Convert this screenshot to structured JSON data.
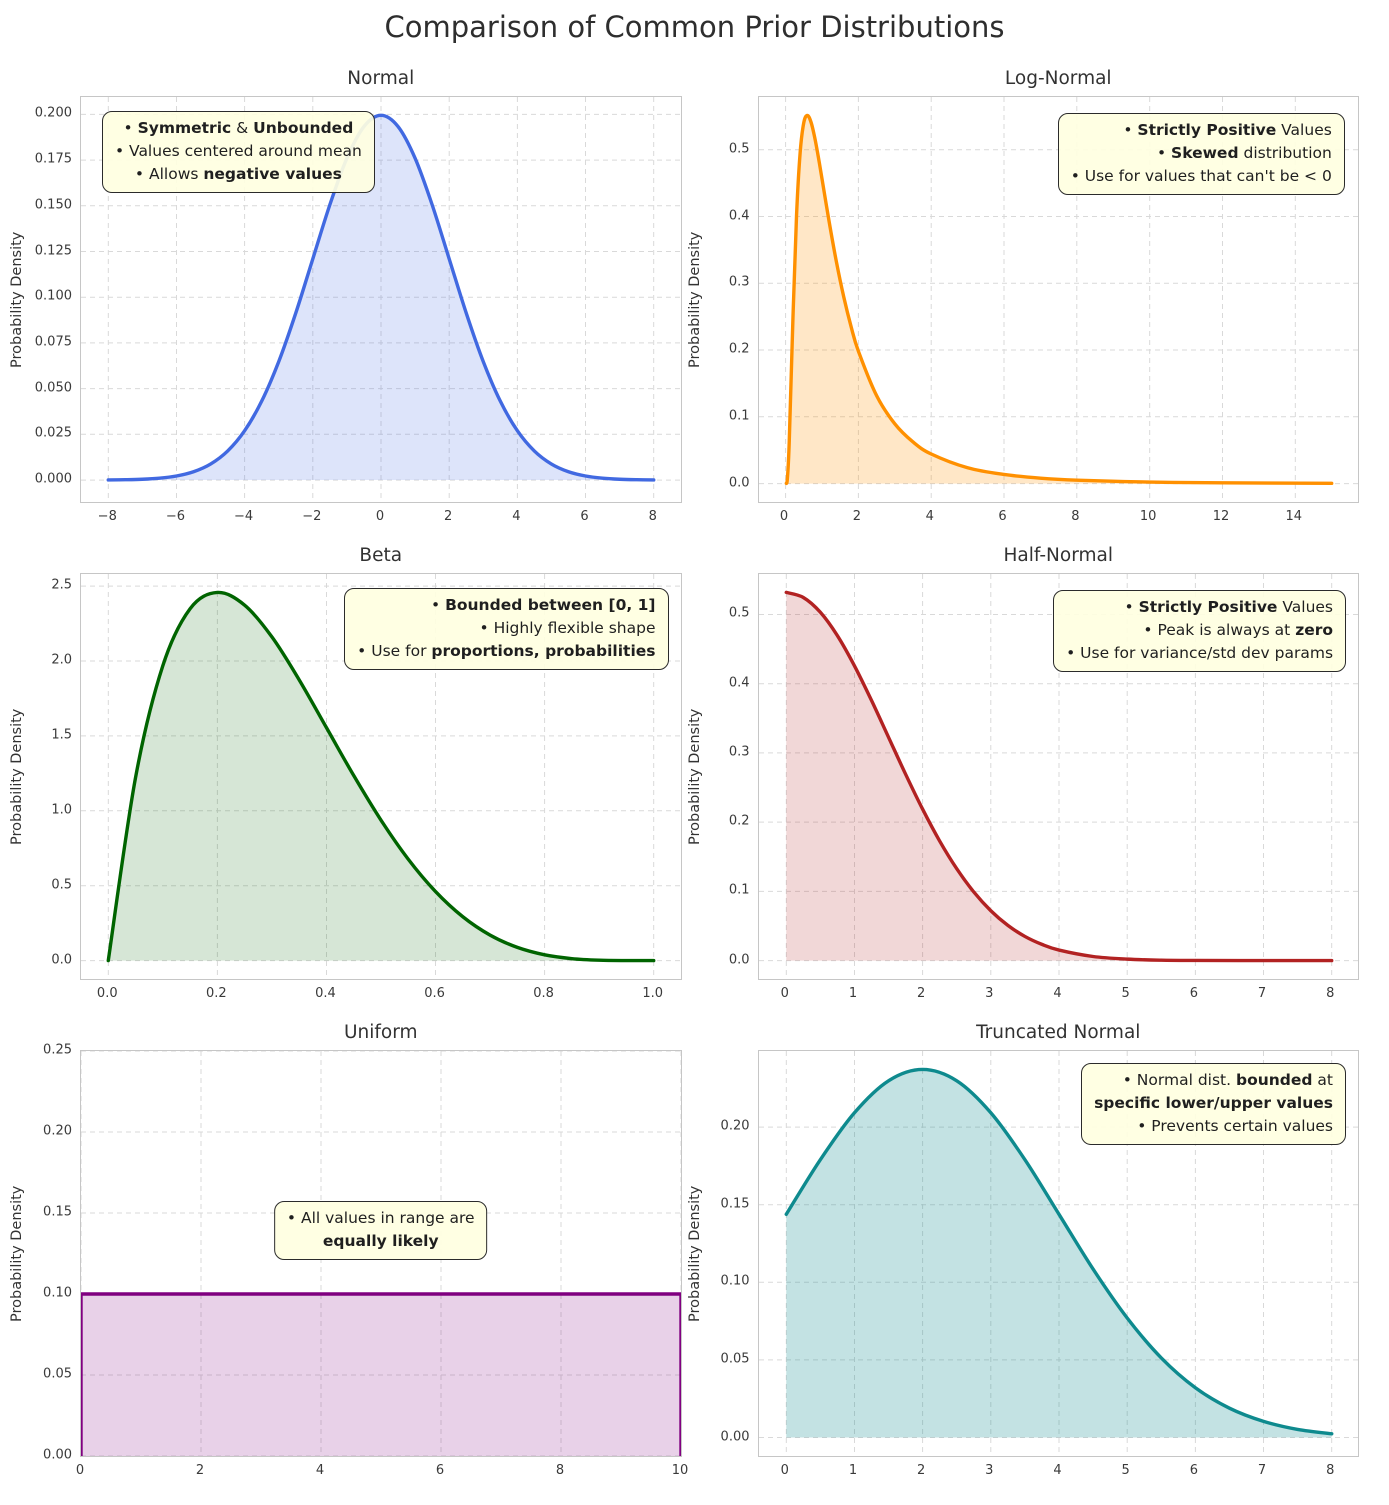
{
  "figure": {
    "title": "Comparison of Common Prior Distributions"
  },
  "chart_data": [
    {
      "type": "area",
      "title": "Normal",
      "ylabel": "Probability Density",
      "color": "#4169E1",
      "fill": "rgba(65,105,225,0.18)",
      "grid": true,
      "legend": "none",
      "xlim": [
        -8.8,
        8.8
      ],
      "ylim": [
        -0.012,
        0.2095
      ],
      "xtick_vals": [
        -8,
        -6,
        -4,
        -2,
        0,
        2,
        4,
        6,
        8
      ],
      "xtick_labels": [
        "−8",
        "−6",
        "−4",
        "−2",
        "0",
        "2",
        "4",
        "6",
        "8"
      ],
      "ytick_vals": [
        0.0,
        0.025,
        0.05,
        0.075,
        0.1,
        0.125,
        0.15,
        0.175,
        0.2
      ],
      "ytick_labels": [
        "0.000",
        "0.025",
        "0.050",
        "0.075",
        "0.100",
        "0.125",
        "0.150",
        "0.175",
        "0.200"
      ],
      "smooth": true,
      "x": [
        -8,
        -7.5,
        -7,
        -6.5,
        -6,
        -5.5,
        -5,
        -4.5,
        -4,
        -3.5,
        -3,
        -2.5,
        -2,
        -1.5,
        -1,
        -0.5,
        0,
        0.5,
        1,
        1.5,
        2,
        2.5,
        3,
        3.5,
        4,
        4.5,
        5,
        5.5,
        6,
        6.5,
        7,
        7.5,
        8
      ],
      "y": [
        7e-05,
        0.00018,
        0.00044,
        0.00102,
        0.00222,
        0.00455,
        0.00876,
        0.01587,
        0.027,
        0.04314,
        0.06476,
        0.09132,
        0.12098,
        0.15057,
        0.17603,
        0.19333,
        0.19947,
        0.19333,
        0.17603,
        0.15057,
        0.12098,
        0.09132,
        0.06476,
        0.04314,
        0.027,
        0.01587,
        0.00876,
        0.00455,
        0.00222,
        0.00102,
        0.00044,
        0.00018,
        7e-05
      ],
      "annotation": {
        "align": "center",
        "pos": {
          "top": "3.5%",
          "left": "3.5%"
        },
        "lines": [
          [
            {
              "t": "• "
            },
            {
              "t": "Symmetric",
              "b": true
            },
            {
              "t": " & "
            },
            {
              "t": "Unbounded",
              "b": true
            }
          ],
          [
            {
              "t": "• Values centered around mean"
            }
          ],
          [
            {
              "t": "• Allows "
            },
            {
              "t": "negative values",
              "b": true
            }
          ]
        ]
      }
    },
    {
      "type": "area",
      "title": "Log-Normal",
      "ylabel": "Probability Density",
      "color": "#FF9000",
      "fill": "rgba(255,144,0,0.22)",
      "grid": true,
      "legend": "none",
      "xlim": [
        -0.73,
        15.75
      ],
      "ylim": [
        -0.0276,
        0.579
      ],
      "xtick_vals": [
        0,
        2,
        4,
        6,
        8,
        10,
        12,
        14
      ],
      "xtick_labels": [
        "0",
        "2",
        "4",
        "6",
        "8",
        "10",
        "12",
        "14"
      ],
      "ytick_vals": [
        0.0,
        0.1,
        0.2,
        0.3,
        0.4,
        0.5
      ],
      "ytick_labels": [
        "0.0",
        "0.1",
        "0.2",
        "0.3",
        "0.4",
        "0.5"
      ],
      "smooth": true,
      "x": [
        0.02,
        0.05,
        0.1,
        0.2,
        0.3,
        0.4,
        0.5,
        0.6,
        0.7,
        0.8,
        0.9,
        1,
        1.2,
        1.4,
        1.6,
        1.8,
        2,
        2.5,
        3,
        3.5,
        4,
        5,
        6,
        7,
        8,
        10,
        12,
        15
      ],
      "y": [
        0.0003,
        0.0079,
        0.0616,
        0.2436,
        0.4001,
        0.4955,
        0.5405,
        0.5514,
        0.5411,
        0.5184,
        0.489,
        0.4566,
        0.3911,
        0.331,
        0.279,
        0.235,
        0.1983,
        0.1317,
        0.0895,
        0.0623,
        0.0443,
        0.0237,
        0.0136,
        0.0081,
        0.0051,
        0.0022,
        0.0011,
        0.0004
      ],
      "annotation": {
        "align": "right",
        "pos": {
          "top": "4%",
          "right": "2.2%"
        },
        "lines": [
          [
            {
              "t": "• "
            },
            {
              "t": "Strictly Positive",
              "b": true
            },
            {
              "t": " Values"
            }
          ],
          [
            {
              "t": "• "
            },
            {
              "t": "Skewed",
              "b": true
            },
            {
              "t": " distribution"
            }
          ],
          [
            {
              "t": "• Use for values that can't be < 0"
            }
          ]
        ]
      }
    },
    {
      "type": "area",
      "title": "Beta",
      "ylabel": "Probability Density",
      "color": "#006400",
      "fill": "rgba(0,100,0,0.16)",
      "grid": true,
      "legend": "none",
      "xlim": [
        -0.05,
        1.05
      ],
      "ylim": [
        -0.123,
        2.581
      ],
      "xtick_vals": [
        0,
        0.2,
        0.4,
        0.6,
        0.8,
        1.0
      ],
      "xtick_labels": [
        "0.0",
        "0.2",
        "0.4",
        "0.6",
        "0.8",
        "1.0"
      ],
      "ytick_vals": [
        0.0,
        0.5,
        1.0,
        1.5,
        2.0,
        2.5
      ],
      "ytick_labels": [
        "0.0",
        "0.5",
        "1.0",
        "1.5",
        "2.0",
        "2.5"
      ],
      "smooth": true,
      "x": [
        0,
        0.05,
        0.1,
        0.15,
        0.2,
        0.25,
        0.3,
        0.35,
        0.4,
        0.45,
        0.5,
        0.55,
        0.6,
        0.65,
        0.7,
        0.75,
        0.8,
        0.85,
        0.9,
        0.95,
        1
      ],
      "y": [
        0,
        1.2218,
        1.9683,
        2.349,
        2.4576,
        2.373,
        2.1609,
        1.8743,
        1.5552,
        1.2354,
        0.9375,
        0.6766,
        0.4608,
        0.2926,
        0.1701,
        0.0879,
        0.0384,
        0.0129,
        0.0027,
        0.0002,
        0
      ],
      "annotation": {
        "align": "right",
        "pos": {
          "top": "3.5%",
          "right": "2%"
        },
        "lines": [
          [
            {
              "t": "• "
            },
            {
              "t": "Bounded between [0, 1]",
              "b": true
            }
          ],
          [
            {
              "t": "• Highly flexible shape"
            }
          ],
          [
            {
              "t": "• Use for "
            },
            {
              "t": "proportions, probabilities",
              "b": true
            }
          ]
        ]
      }
    },
    {
      "type": "area",
      "title": "Half-Normal",
      "ylabel": "Probability Density",
      "color": "#B22222",
      "fill": "rgba(178,34,34,0.18)",
      "grid": true,
      "legend": "none",
      "xlim": [
        -0.4,
        8.4
      ],
      "ylim": [
        -0.0266,
        0.5585
      ],
      "xtick_vals": [
        0,
        1,
        2,
        3,
        4,
        5,
        6,
        7,
        8
      ],
      "xtick_labels": [
        "0",
        "1",
        "2",
        "3",
        "4",
        "5",
        "6",
        "7",
        "8"
      ],
      "ytick_vals": [
        0.0,
        0.1,
        0.2,
        0.3,
        0.4,
        0.5
      ],
      "ytick_labels": [
        "0.0",
        "0.1",
        "0.2",
        "0.3",
        "0.4",
        "0.5"
      ],
      "smooth": true,
      "x": [
        0,
        0.25,
        0.5,
        0.75,
        1,
        1.25,
        1.5,
        1.75,
        2,
        2.25,
        2.5,
        2.75,
        3,
        3.25,
        3.5,
        3.75,
        4,
        4.5,
        5,
        5.5,
        6,
        7,
        8
      ],
      "y": [
        0.5319,
        0.5246,
        0.5032,
        0.4694,
        0.4259,
        0.3759,
        0.3226,
        0.2693,
        0.2187,
        0.1727,
        0.1327,
        0.0991,
        0.072,
        0.0508,
        0.0349,
        0.0234,
        0.0152,
        0.0059,
        0.0021,
        0.0006,
        0.0002,
        0,
        0
      ],
      "annotation": {
        "align": "right",
        "pos": {
          "top": "4%",
          "right": "2%"
        },
        "lines": [
          [
            {
              "t": "• "
            },
            {
              "t": "Strictly Positive",
              "b": true
            },
            {
              "t": " Values"
            }
          ],
          [
            {
              "t": "• Peak is always at "
            },
            {
              "t": "zero",
              "b": true
            }
          ],
          [
            {
              "t": "• Use for variance/std dev params"
            }
          ]
        ]
      }
    },
    {
      "type": "area",
      "title": "Uniform",
      "ylabel": "Probability Density",
      "color": "#800080",
      "fill": "rgba(128,0,128,0.18)",
      "grid": true,
      "legend": "none",
      "xlim": [
        0,
        10
      ],
      "ylim": [
        0,
        0.25
      ],
      "xtick_vals": [
        0,
        2,
        4,
        6,
        8,
        10
      ],
      "xtick_labels": [
        "0",
        "2",
        "4",
        "6",
        "8",
        "10"
      ],
      "ytick_vals": [
        0.0,
        0.05,
        0.1,
        0.15,
        0.2,
        0.25
      ],
      "ytick_labels": [
        "0.00",
        "0.05",
        "0.10",
        "0.15",
        "0.20",
        "0.25"
      ],
      "smooth": false,
      "x": [
        0,
        0,
        10,
        10
      ],
      "y": [
        0,
        0.1,
        0.1,
        0
      ],
      "annotation": {
        "align": "center",
        "pos": {
          "top": "37%",
          "left": "50%",
          "center": true
        },
        "lines": [
          [
            {
              "t": "• All values in range are"
            }
          ],
          [
            {
              "t": "equally likely",
              "b": true
            }
          ]
        ]
      }
    },
    {
      "type": "area",
      "title": "Truncated Normal",
      "ylabel": "Probability Density",
      "color": "#0E8A8E",
      "fill": "rgba(14,138,142,0.25)",
      "grid": true,
      "legend": "none",
      "xlim": [
        -0.4,
        8.4
      ],
      "ylim": [
        -0.0119,
        0.249
      ],
      "xtick_vals": [
        0,
        1,
        2,
        3,
        4,
        5,
        6,
        7,
        8
      ],
      "xtick_labels": [
        "0",
        "1",
        "2",
        "3",
        "4",
        "5",
        "6",
        "7",
        "8"
      ],
      "ytick_vals": [
        0.0,
        0.05,
        0.1,
        0.15,
        0.2
      ],
      "ytick_labels": [
        "0.00",
        "0.05",
        "0.10",
        "0.15",
        "0.20"
      ],
      "smooth": true,
      "x": [
        0,
        0.5,
        1,
        1.5,
        2,
        2.5,
        3,
        3.5,
        4,
        4.5,
        5,
        5.5,
        6,
        6.5,
        7,
        7.5,
        8
      ],
      "y": [
        0.1438,
        0.179,
        0.2092,
        0.2298,
        0.2371,
        0.2298,
        0.2092,
        0.179,
        0.1438,
        0.1085,
        0.077,
        0.0513,
        0.0321,
        0.0189,
        0.0104,
        0.0052,
        0.0024
      ],
      "annotation": {
        "align": "right",
        "pos": {
          "top": "3%",
          "right": "2%"
        },
        "lines": [
          [
            {
              "t": "• Normal dist. "
            },
            {
              "t": "bounded",
              "b": true
            },
            {
              "t": " at"
            }
          ],
          [
            {
              "t": "specific lower/upper values",
              "b": true
            }
          ],
          [
            {
              "t": "• Prevents certain values"
            }
          ]
        ]
      }
    }
  ]
}
